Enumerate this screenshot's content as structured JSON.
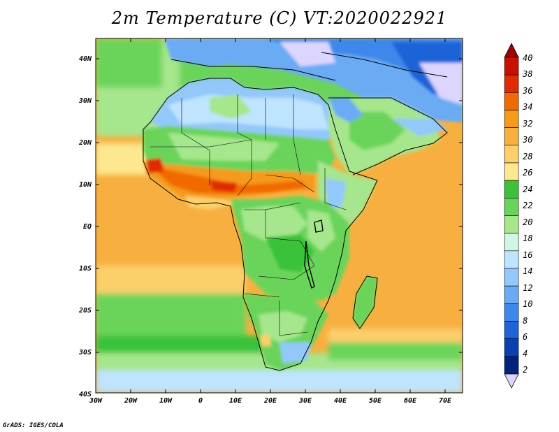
{
  "title": "2m Temperature (C) VT:2020022921",
  "footer": "GrADS: IGES/COLA",
  "axes": {
    "lat_labels": [
      "40N",
      "30N",
      "20N",
      "10N",
      "EQ",
      "10S",
      "20S",
      "30S",
      "40S"
    ],
    "lon_labels": [
      "30W",
      "20W",
      "10W",
      "0",
      "10E",
      "20E",
      "30E",
      "40E",
      "50E",
      "60E",
      "70E"
    ]
  },
  "colorbar": {
    "levels": [
      "40",
      "38",
      "36",
      "34",
      "32",
      "30",
      "28",
      "26",
      "24",
      "22",
      "20",
      "18",
      "16",
      "14",
      "12",
      "10",
      "8",
      "6",
      "4",
      "2"
    ],
    "colors": [
      "#a00000",
      "#c81000",
      "#e02a00",
      "#f06a00",
      "#f59a1a",
      "#f7b040",
      "#fbcf6a",
      "#fde890",
      "#3ac23a",
      "#6ad45a",
      "#a6e68c",
      "#d4f4e6",
      "#bfe4ff",
      "#93c8fa",
      "#6aabf4",
      "#3d88ea",
      "#1e64d8",
      "#0a40b2",
      "#05227a",
      "#dcd6ff"
    ]
  },
  "colors": {
    "ocean_warm": "#f7b040",
    "ocean_mid": "#fbcf6a",
    "land_green": "#6ad45a",
    "sahel_hot": "#f06a00",
    "north_cold": "#93c8fa"
  }
}
